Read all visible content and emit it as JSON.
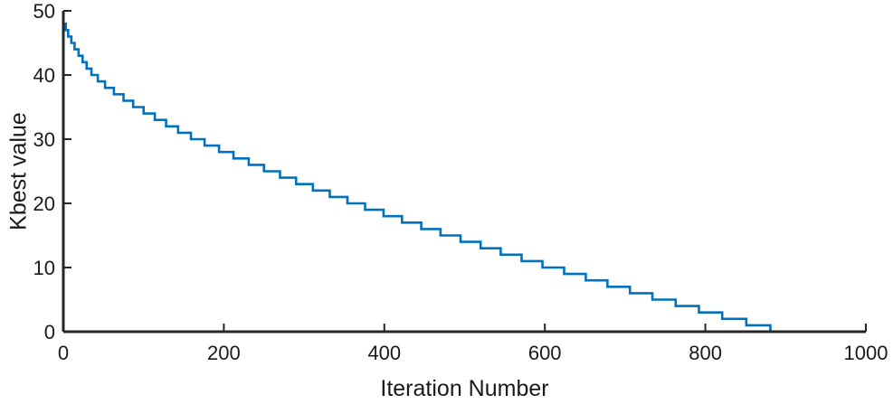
{
  "chart_data": {
    "type": "line",
    "title": "",
    "xlabel": "Iteration Number",
    "ylabel": "Kbest value",
    "xlim": [
      0,
      1000
    ],
    "ylim": [
      0,
      50
    ],
    "xticks": [
      "0",
      "200",
      "400",
      "600",
      "800",
      "1000"
    ],
    "yticks": [
      "0",
      "10",
      "20",
      "30",
      "40",
      "50"
    ],
    "grid": false,
    "legend": "none",
    "line_color": "#0072BD",
    "series": [
      {
        "x": [
          0,
          3,
          6,
          10,
          14,
          19,
          24,
          29,
          35,
          43,
          52,
          63,
          75,
          87,
          100,
          114,
          128,
          143,
          159,
          176,
          194,
          212,
          231,
          250,
          270,
          290,
          311,
          332,
          354,
          376,
          399,
          422,
          446,
          470,
          495,
          520,
          545,
          571,
          597,
          624,
          651,
          678,
          706,
          734,
          763,
          792,
          821,
          851,
          881,
          911,
          941,
          981,
          1000
        ],
        "y": [
          48,
          47,
          46,
          45,
          44,
          43,
          42,
          41,
          40,
          39,
          38,
          37,
          36,
          35,
          34,
          33,
          32,
          31,
          30,
          29,
          28,
          27,
          26,
          25,
          24,
          23,
          22,
          21,
          20,
          19,
          18,
          17,
          16,
          15,
          14,
          13,
          12,
          11,
          10,
          9,
          8,
          7,
          6,
          5,
          4,
          3,
          2,
          1,
          0,
          0,
          0,
          0,
          0
        ]
      }
    ]
  }
}
